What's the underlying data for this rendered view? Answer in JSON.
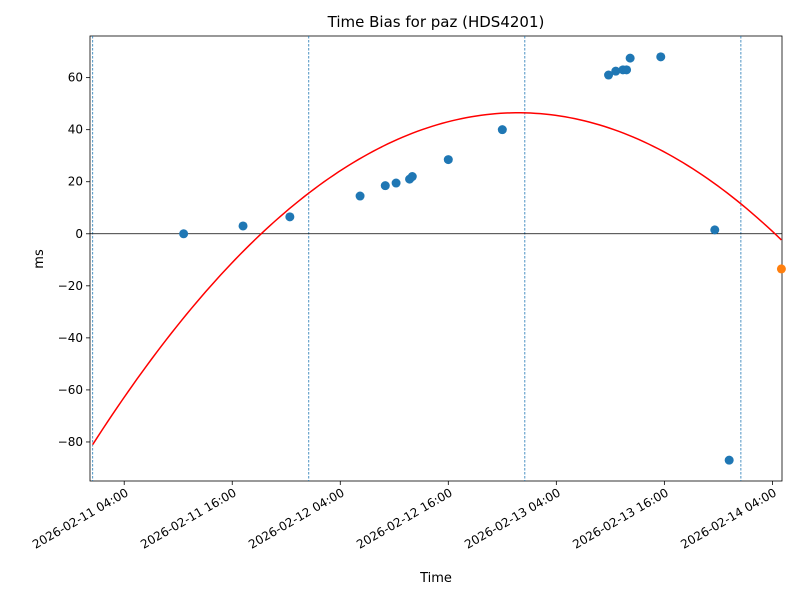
{
  "chart_data": {
    "type": "scatter",
    "title": "Time Bias for paz (HDS4201)",
    "xlabel": "Time",
    "ylabel": "ms",
    "xlim": [
      "2026-02-11T00:12",
      "2026-02-14T05:04"
    ],
    "ylim": [
      -95,
      76
    ],
    "grid": false,
    "legend": "none",
    "x_ticks": [
      "2026-02-11 04:00",
      "2026-02-11 16:00",
      "2026-02-12 04:00",
      "2026-02-12 16:00",
      "2026-02-13 04:00",
      "2026-02-13 16:00",
      "2026-02-14 04:00"
    ],
    "x_tick_values": [
      "2026-02-11T04:00",
      "2026-02-11T16:00",
      "2026-02-12T04:00",
      "2026-02-12T16:00",
      "2026-02-13T04:00",
      "2026-02-13T16:00",
      "2026-02-14T04:00"
    ],
    "y_ticks": [
      "−80",
      "−60",
      "−40",
      "−20",
      "0",
      "20",
      "40",
      "60"
    ],
    "y_tick_values": [
      -80,
      -60,
      -40,
      -20,
      0,
      20,
      40,
      60
    ],
    "vlines": [
      "2026-02-11T00:30",
      "2026-02-12T00:30",
      "2026-02-13T00:30",
      "2026-02-14T00:30"
    ],
    "hline": 0,
    "series": [
      {
        "kind": "scatter",
        "color": "#1f77b4",
        "points": [
          {
            "x": "2026-02-11T10:36",
            "y": 0
          },
          {
            "x": "2026-02-11T17:12",
            "y": 3
          },
          {
            "x": "2026-02-11T22:24",
            "y": 6.5
          },
          {
            "x": "2026-02-12T06:12",
            "y": 14.5
          },
          {
            "x": "2026-02-12T09:00",
            "y": 18.5
          },
          {
            "x": "2026-02-12T10:12",
            "y": 19.5
          },
          {
            "x": "2026-02-12T11:42",
            "y": 21
          },
          {
            "x": "2026-02-12T12:00",
            "y": 22
          },
          {
            "x": "2026-02-12T16:00",
            "y": 28.5
          },
          {
            "x": "2026-02-12T22:00",
            "y": 40
          },
          {
            "x": "2026-02-13T09:48",
            "y": 61
          },
          {
            "x": "2026-02-13T10:36",
            "y": 62.5
          },
          {
            "x": "2026-02-13T11:24",
            "y": 63
          },
          {
            "x": "2026-02-13T11:48",
            "y": 63
          },
          {
            "x": "2026-02-13T12:12",
            "y": 67.5
          },
          {
            "x": "2026-02-13T15:36",
            "y": 68
          },
          {
            "x": "2026-02-13T21:36",
            "y": 1.5
          },
          {
            "x": "2026-02-13T23:12",
            "y": -87
          }
        ]
      },
      {
        "kind": "scatter",
        "color": "#ff7f0e",
        "points": [
          {
            "x": "2026-02-14T05:00",
            "y": -13.5
          }
        ]
      },
      {
        "kind": "fit-curve",
        "color": "#ff0000",
        "vertex": {
          "x": "2026-02-12T23:45",
          "y": 46.5
        },
        "start": {
          "x": "2026-02-11T00:30",
          "y": -81
        },
        "end": {
          "x": "2026-02-14T05:00",
          "y": -13.5
        }
      }
    ]
  }
}
